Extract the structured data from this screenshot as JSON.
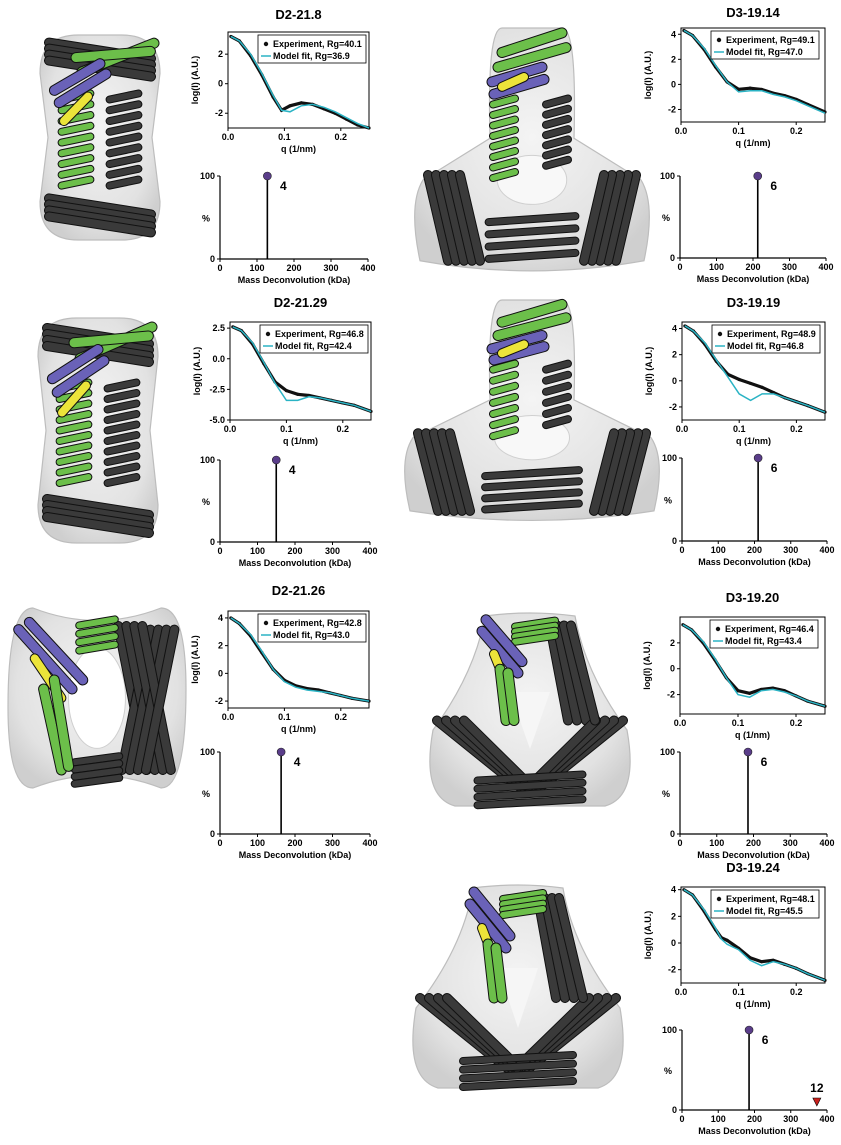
{
  "figure_panels": [
    {
      "id": "D2-21.8",
      "saxs": {
        "experiment": "Experiment, Rg=40.1",
        "model": "Model fit, Rg=36.9"
      },
      "oligomer": "4"
    },
    {
      "id": "D3-19.14",
      "saxs": {
        "experiment": "Experiment, Rg=49.1",
        "model": "Model fit, Rg=47.0"
      },
      "oligomer": "6"
    },
    {
      "id": "D2-21.29",
      "saxs": {
        "experiment": "Experiment, Rg=46.8",
        "model": "Model fit, Rg=42.4"
      },
      "oligomer": "4"
    },
    {
      "id": "D3-19.19",
      "saxs": {
        "experiment": "Experiment, Rg=48.9",
        "model": "Model fit, Rg=46.8"
      },
      "oligomer": "6"
    },
    {
      "id": "D2-21.26",
      "saxs": {
        "experiment": "Experiment, Rg=42.8",
        "model": "Model fit, Rg=43.0"
      },
      "oligomer": "4"
    },
    {
      "id": "D3-19.20",
      "saxs": {
        "experiment": "Experiment, Rg=46.4",
        "model": "Model fit, Rg=43.4"
      },
      "oligomer": "6"
    },
    {
      "id": "D3-19.24",
      "saxs": {
        "experiment": "Experiment, Rg=48.1",
        "model": "Model fit, Rg=45.5"
      },
      "oligomer": "6",
      "extra_label": "12"
    }
  ],
  "colors": {
    "experiment": "#111111",
    "model": "#2ab3c4",
    "peak_marker": "#5a3d8a",
    "extra_marker": "#c8201c",
    "helix_green": "#6cbf4a",
    "helix_blue": "#6a62b8",
    "helix_yellow": "#ece43a",
    "helix_dark": "#3a3a3a",
    "envelope": "#d4d4d4"
  },
  "chart_data": [
    {
      "type": "line",
      "title": "D2-21.8",
      "xlabel": "q (1/nm)",
      "ylabel": "log(I) (A.U.)",
      "xlim": [
        0,
        0.25
      ],
      "ylim": [
        -3,
        3.5
      ],
      "xticks": [
        "0.0",
        "0.1",
        "0.2"
      ],
      "xtick_values": [
        0,
        0.1,
        0.2
      ],
      "yticks": [
        "-2",
        "0",
        "2"
      ],
      "ytick_values": [
        -2,
        0,
        2
      ],
      "series": [
        {
          "name": "Experiment, Rg=40.1",
          "x": [
            0.005,
            0.02,
            0.04,
            0.06,
            0.08,
            0.095,
            0.11,
            0.13,
            0.15,
            0.17,
            0.19,
            0.21,
            0.23,
            0.25
          ],
          "y": [
            3.2,
            2.9,
            1.9,
            0.6,
            -0.9,
            -1.8,
            -1.5,
            -1.3,
            -1.4,
            -1.7,
            -2.0,
            -2.4,
            -2.8,
            -3.0
          ]
        },
        {
          "name": "Model fit, Rg=36.9",
          "x": [
            0.005,
            0.02,
            0.04,
            0.06,
            0.08,
            0.095,
            0.11,
            0.13,
            0.15,
            0.17,
            0.19,
            0.21,
            0.23,
            0.25
          ],
          "y": [
            3.2,
            2.9,
            2.0,
            0.7,
            -0.8,
            -1.8,
            -1.9,
            -1.5,
            -1.4,
            -1.6,
            -1.9,
            -2.3,
            -2.7,
            -3.0
          ]
        }
      ]
    },
    {
      "type": "bar",
      "title": "",
      "xlabel": "Mass Deconvolution (kDa)",
      "ylabel": "%",
      "xlim": [
        0,
        400
      ],
      "ylim": [
        0,
        100
      ],
      "xticks": [
        "0",
        "100",
        "200",
        "300",
        "400"
      ],
      "xtick_values": [
        0,
        100,
        200,
        300,
        400
      ],
      "yticks": [
        "0",
        "100"
      ],
      "ytick_values": [
        0,
        100
      ],
      "peaks": [
        {
          "x": 128,
          "y": 100,
          "label": "4"
        }
      ]
    },
    {
      "type": "line",
      "title": "D3-19.14",
      "xlabel": "q (1/nm)",
      "ylabel": "log(I) (A.U.)",
      "xlim": [
        0,
        0.25
      ],
      "ylim": [
        -3,
        4.5
      ],
      "xticks": [
        "0.0",
        "0.1",
        "0.2"
      ],
      "xtick_values": [
        0,
        0.1,
        0.2
      ],
      "yticks": [
        "-2",
        "0",
        "2",
        "4"
      ],
      "ytick_values": [
        -2,
        0,
        2,
        4
      ],
      "series": [
        {
          "name": "Experiment, Rg=49.1",
          "x": [
            0.005,
            0.02,
            0.04,
            0.06,
            0.08,
            0.1,
            0.12,
            0.14,
            0.16,
            0.18,
            0.2,
            0.22,
            0.25
          ],
          "y": [
            4.3,
            3.9,
            2.8,
            1.4,
            0.2,
            -0.4,
            -0.3,
            -0.4,
            -0.7,
            -0.9,
            -1.2,
            -1.6,
            -2.2
          ]
        },
        {
          "name": "Model fit, Rg=47.0",
          "x": [
            0.005,
            0.02,
            0.04,
            0.06,
            0.08,
            0.1,
            0.12,
            0.14,
            0.16,
            0.18,
            0.2,
            0.22,
            0.25
          ],
          "y": [
            4.3,
            3.9,
            2.9,
            1.5,
            0.2,
            -0.6,
            -0.5,
            -0.5,
            -0.8,
            -1.0,
            -1.3,
            -1.7,
            -2.3
          ]
        }
      ]
    },
    {
      "type": "bar",
      "title": "",
      "xlabel": "Mass Deconvolution (kDa)",
      "ylabel": "%",
      "xlim": [
        0,
        400
      ],
      "ylim": [
        0,
        100
      ],
      "xticks": [
        "0",
        "100",
        "200",
        "300",
        "400"
      ],
      "xtick_values": [
        0,
        100,
        200,
        300,
        400
      ],
      "yticks": [
        "0",
        "100"
      ],
      "ytick_values": [
        0,
        100
      ],
      "peaks": [
        {
          "x": 213,
          "y": 100,
          "label": "6"
        }
      ]
    },
    {
      "type": "line",
      "title": "D2-21.29",
      "xlabel": "q (1/nm)",
      "ylabel": "log(I) (A.U.)",
      "xlim": [
        0,
        0.25
      ],
      "ylim": [
        -5,
        3
      ],
      "xticks": [
        "0.0",
        "0.1",
        "0.2"
      ],
      "xtick_values": [
        0,
        0.1,
        0.2
      ],
      "yticks": [
        "-5.0",
        "-2.5",
        "0.0",
        "2.5"
      ],
      "ytick_values": [
        -5,
        -2.5,
        0,
        2.5
      ],
      "series": [
        {
          "name": "Experiment, Rg=46.8",
          "x": [
            0.005,
            0.02,
            0.04,
            0.06,
            0.08,
            0.1,
            0.12,
            0.14,
            0.16,
            0.18,
            0.2,
            0.22,
            0.25
          ],
          "y": [
            2.6,
            2.3,
            1.2,
            -0.4,
            -1.9,
            -2.6,
            -2.9,
            -3.0,
            -3.2,
            -3.4,
            -3.6,
            -3.8,
            -4.3
          ]
        },
        {
          "name": "Model fit, Rg=42.4",
          "x": [
            0.005,
            0.02,
            0.04,
            0.06,
            0.08,
            0.1,
            0.12,
            0.14,
            0.16,
            0.18,
            0.2,
            0.22,
            0.25
          ],
          "y": [
            2.6,
            2.3,
            1.3,
            -0.3,
            -2.0,
            -3.4,
            -3.4,
            -3.1,
            -3.2,
            -3.4,
            -3.6,
            -3.8,
            -4.3
          ]
        }
      ]
    },
    {
      "type": "bar",
      "title": "",
      "xlabel": "Mass Deconvolution (kDa)",
      "ylabel": "%",
      "xlim": [
        0,
        400
      ],
      "ylim": [
        0,
        100
      ],
      "xticks": [
        "0",
        "100",
        "200",
        "300",
        "400"
      ],
      "xtick_values": [
        0,
        100,
        200,
        300,
        400
      ],
      "yticks": [
        "0",
        "100"
      ],
      "ytick_values": [
        0,
        100
      ],
      "peaks": [
        {
          "x": 150,
          "y": 100,
          "label": "4"
        }
      ]
    },
    {
      "type": "line",
      "title": "D3-19.19",
      "xlabel": "q (1/nm)",
      "ylabel": "log(I) (A.U.)",
      "xlim": [
        0,
        0.25
      ],
      "ylim": [
        -3,
        4.5
      ],
      "xticks": [
        "0.0",
        "0.1",
        "0.2"
      ],
      "xtick_values": [
        0,
        0.1,
        0.2
      ],
      "yticks": [
        "-2",
        "0",
        "2",
        "4"
      ],
      "ytick_values": [
        -2,
        0,
        2,
        4
      ],
      "series": [
        {
          "name": "Experiment, Rg=48.9",
          "x": [
            0.005,
            0.02,
            0.04,
            0.06,
            0.08,
            0.1,
            0.12,
            0.14,
            0.16,
            0.18,
            0.2,
            0.22,
            0.25
          ],
          "y": [
            4.2,
            3.8,
            2.8,
            1.5,
            0.5,
            0.1,
            -0.2,
            -0.5,
            -0.9,
            -1.3,
            -1.6,
            -1.9,
            -2.4
          ]
        },
        {
          "name": "Model fit, Rg=46.8",
          "x": [
            0.005,
            0.02,
            0.04,
            0.06,
            0.08,
            0.1,
            0.12,
            0.14,
            0.16,
            0.18,
            0.2,
            0.22,
            0.25
          ],
          "y": [
            4.2,
            3.8,
            2.9,
            1.6,
            0.3,
            -1.0,
            -1.5,
            -1.0,
            -1.0,
            -1.3,
            -1.6,
            -1.9,
            -2.4
          ]
        }
      ]
    },
    {
      "type": "bar",
      "title": "",
      "xlabel": "Mass Deconvolution (kDa)",
      "ylabel": "%",
      "xlim": [
        0,
        400
      ],
      "ylim": [
        0,
        100
      ],
      "xticks": [
        "0",
        "100",
        "200",
        "300",
        "400"
      ],
      "xtick_values": [
        0,
        100,
        200,
        300,
        400
      ],
      "yticks": [
        "0",
        "100"
      ],
      "ytick_values": [
        0,
        100
      ],
      "peaks": [
        {
          "x": 210,
          "y": 100,
          "label": "6"
        }
      ]
    },
    {
      "type": "line",
      "title": "D2-21.26",
      "xlabel": "q (1/nm)",
      "ylabel": "log(I) (A.U.)",
      "xlim": [
        0,
        0.25
      ],
      "ylim": [
        -2.5,
        4.5
      ],
      "xticks": [
        "0.0",
        "0.1",
        "0.2"
      ],
      "xtick_values": [
        0,
        0.1,
        0.2
      ],
      "yticks": [
        "-2",
        "0",
        "2",
        "4"
      ],
      "ytick_values": [
        -2,
        0,
        2,
        4
      ],
      "series": [
        {
          "name": "Experiment, Rg=42.8",
          "x": [
            0.005,
            0.02,
            0.04,
            0.06,
            0.08,
            0.1,
            0.12,
            0.14,
            0.16,
            0.18,
            0.2,
            0.22,
            0.25
          ],
          "y": [
            4.0,
            3.6,
            2.7,
            1.5,
            0.3,
            -0.5,
            -0.9,
            -1.1,
            -1.2,
            -1.4,
            -1.6,
            -1.8,
            -2.0
          ]
        },
        {
          "name": "Model fit, Rg=43.0",
          "x": [
            0.005,
            0.02,
            0.04,
            0.06,
            0.08,
            0.1,
            0.12,
            0.14,
            0.16,
            0.18,
            0.2,
            0.22,
            0.25
          ],
          "y": [
            4.0,
            3.6,
            2.8,
            1.6,
            0.3,
            -0.6,
            -1.0,
            -1.2,
            -1.3,
            -1.4,
            -1.6,
            -1.8,
            -2.0
          ]
        }
      ]
    },
    {
      "type": "bar",
      "title": "",
      "xlabel": "Mass Deconvolution (kDa)",
      "ylabel": "%",
      "xlim": [
        0,
        400
      ],
      "ylim": [
        0,
        100
      ],
      "xticks": [
        "0",
        "100",
        "200",
        "300",
        "400"
      ],
      "xtick_values": [
        0,
        100,
        200,
        300,
        400
      ],
      "yticks": [
        "0",
        "100"
      ],
      "ytick_values": [
        0,
        100
      ],
      "peaks": [
        {
          "x": 163,
          "y": 100,
          "label": "4"
        }
      ]
    },
    {
      "type": "line",
      "title": "D3-19.20",
      "xlabel": "q (1/nm)",
      "ylabel": "log(I) (A.U.)",
      "xlim": [
        0,
        0.25
      ],
      "ylim": [
        -3.5,
        4
      ],
      "xticks": [
        "0.0",
        "0.1",
        "0.2"
      ],
      "xtick_values": [
        0,
        0.1,
        0.2
      ],
      "yticks": [
        "-2",
        "0",
        "2"
      ],
      "ytick_values": [
        -2,
        0,
        2
      ],
      "series": [
        {
          "name": "Experiment, Rg=46.4",
          "x": [
            0.005,
            0.02,
            0.04,
            0.06,
            0.08,
            0.1,
            0.12,
            0.14,
            0.16,
            0.18,
            0.2,
            0.22,
            0.25
          ],
          "y": [
            3.4,
            3.0,
            2.0,
            0.7,
            -0.7,
            -1.7,
            -1.9,
            -1.6,
            -1.5,
            -1.7,
            -2.1,
            -2.5,
            -2.9
          ]
        },
        {
          "name": "Model fit, Rg=43.4",
          "x": [
            0.005,
            0.02,
            0.04,
            0.06,
            0.08,
            0.1,
            0.12,
            0.14,
            0.16,
            0.18,
            0.2,
            0.22,
            0.25
          ],
          "y": [
            3.4,
            3.0,
            2.1,
            0.8,
            -0.7,
            -2.0,
            -2.2,
            -1.7,
            -1.6,
            -1.8,
            -2.1,
            -2.5,
            -2.9
          ]
        }
      ]
    },
    {
      "type": "bar",
      "title": "",
      "xlabel": "Mass Deconvolution (kDa)",
      "ylabel": "%",
      "xlim": [
        0,
        400
      ],
      "ylim": [
        0,
        100
      ],
      "xticks": [
        "0",
        "100",
        "200",
        "300",
        "400"
      ],
      "xtick_values": [
        0,
        100,
        200,
        300,
        400
      ],
      "yticks": [
        "0",
        "100"
      ],
      "ytick_values": [
        0,
        100
      ],
      "peaks": [
        {
          "x": 185,
          "y": 100,
          "label": "6"
        }
      ]
    },
    {
      "type": "line",
      "title": "D3-19.24",
      "xlabel": "q (1/nm)",
      "ylabel": "log(I) (A.U.)",
      "xlim": [
        0,
        0.25
      ],
      "ylim": [
        -3,
        4.2
      ],
      "xticks": [
        "0.0",
        "0.1",
        "0.2"
      ],
      "xtick_values": [
        0,
        0.1,
        0.2
      ],
      "yticks": [
        "-2",
        "0",
        "2",
        "4"
      ],
      "ytick_values": [
        -2,
        0,
        2,
        4
      ],
      "series": [
        {
          "name": "Experiment, Rg=48.1",
          "x": [
            0.005,
            0.02,
            0.04,
            0.06,
            0.07,
            0.08,
            0.1,
            0.12,
            0.14,
            0.16,
            0.18,
            0.2,
            0.22,
            0.25
          ],
          "y": [
            4.0,
            3.6,
            2.4,
            1.0,
            0.4,
            0.2,
            -0.4,
            -1.1,
            -1.4,
            -1.3,
            -1.6,
            -1.9,
            -2.3,
            -2.8
          ]
        },
        {
          "name": "Model fit, Rg=45.5",
          "x": [
            0.005,
            0.02,
            0.04,
            0.06,
            0.07,
            0.08,
            0.1,
            0.12,
            0.14,
            0.16,
            0.18,
            0.2,
            0.22,
            0.25
          ],
          "y": [
            4.0,
            3.6,
            2.5,
            1.1,
            0.3,
            -0.1,
            -0.5,
            -1.3,
            -1.7,
            -1.4,
            -1.6,
            -1.9,
            -2.3,
            -2.8
          ]
        }
      ]
    },
    {
      "type": "bar",
      "title": "",
      "xlabel": "Mass Deconvolution (kDa)",
      "ylabel": "%",
      "xlim": [
        0,
        400
      ],
      "ylim": [
        0,
        100
      ],
      "xticks": [
        "0",
        "100",
        "200",
        "300",
        "400"
      ],
      "xtick_values": [
        0,
        100,
        200,
        300,
        400
      ],
      "yticks": [
        "0",
        "100"
      ],
      "ytick_values": [
        0,
        100
      ],
      "peaks": [
        {
          "x": 185,
          "y": 100,
          "label": "6"
        },
        {
          "x": 372,
          "y": 0,
          "label": "12",
          "marker": "triangle"
        }
      ]
    }
  ]
}
